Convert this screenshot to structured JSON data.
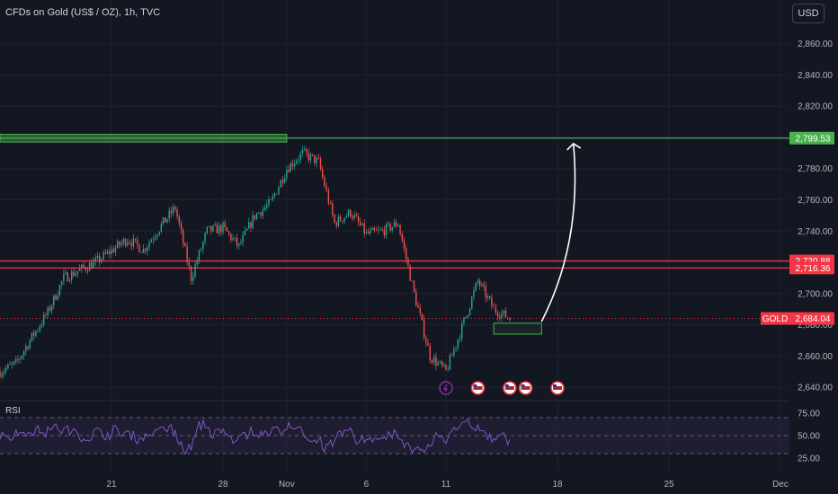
{
  "chart_title": "CFDs on Gold (US$ / OZ), 1h, TVC",
  "currency_button": "USD",
  "rsi_label": "RSI",
  "colors": {
    "background": "#131722",
    "up": "#26a69a",
    "down": "#ef5350",
    "resistance_green": "#4caf50",
    "support_red": "#f23645",
    "rsi_line": "#7e57c2"
  },
  "chart_data": {
    "type": "candlestick",
    "y_axis": {
      "range": [
        2632,
        2888
      ],
      "ticks": [
        "2,640.00",
        "2,660.00",
        "2,680.00",
        "2,700.00",
        "2,720.00",
        "2,740.00",
        "2,760.00",
        "2,780.00",
        "2,800.00",
        "2,820.00",
        "2,840.00",
        "2,860.00"
      ],
      "tick_values": [
        2640,
        2660,
        2680,
        2700,
        2720,
        2740,
        2760,
        2780,
        2800,
        2820,
        2840,
        2860
      ]
    },
    "x_axis": {
      "ticks": [
        "21",
        "28",
        "Nov",
        "6",
        "11",
        "18",
        "25",
        "Dec"
      ],
      "tick_dates": [
        "2024-10-21",
        "2024-10-28",
        "2024-11-01",
        "2024-11-06",
        "2024-11-11",
        "2024-11-18",
        "2024-11-25",
        "2024-12-02"
      ],
      "range": [
        "2024-10-14",
        "2024-12-02"
      ]
    },
    "price_anchors": [
      [
        "2024-10-14",
        2650
      ],
      [
        "2024-10-15",
        2655
      ],
      [
        "2024-10-16",
        2672
      ],
      [
        "2024-10-17",
        2688
      ],
      [
        "2024-10-18",
        2710
      ],
      [
        "2024-10-20",
        2720
      ],
      [
        "2024-10-22",
        2735
      ],
      [
        "2024-10-23",
        2728
      ],
      [
        "2024-10-24",
        2742
      ],
      [
        "2024-10-25",
        2755
      ],
      [
        "2024-10-26",
        2710
      ],
      [
        "2024-10-27",
        2740
      ],
      [
        "2024-10-28",
        2742
      ],
      [
        "2024-10-29",
        2730
      ],
      [
        "2024-10-30",
        2750
      ],
      [
        "2024-10-31",
        2758
      ],
      [
        "2024-11-01",
        2780
      ],
      [
        "2024-11-02",
        2790
      ],
      [
        "2024-11-03",
        2784
      ],
      [
        "2024-11-04",
        2745
      ],
      [
        "2024-11-05",
        2752
      ],
      [
        "2024-11-06",
        2738
      ],
      [
        "2024-11-07",
        2740
      ],
      [
        "2024-11-08",
        2745
      ],
      [
        "2024-11-09",
        2700
      ],
      [
        "2024-11-10",
        2660
      ],
      [
        "2024-11-11",
        2650
      ],
      [
        "2024-11-12",
        2678
      ],
      [
        "2024-11-13",
        2708
      ],
      [
        "2024-11-14",
        2690
      ],
      [
        "2024-11-15",
        2684
      ]
    ],
    "horizontal_lines": [
      {
        "label": "2,799.53",
        "value": 2799.53,
        "color": "#4caf50"
      },
      {
        "label": "2,720.88",
        "value": 2720.88,
        "color": "#f23645"
      },
      {
        "label": "2,716.36",
        "value": 2716.36,
        "color": "#f23645"
      }
    ],
    "last_price": {
      "symbol": "GOLD",
      "value": 2684.04,
      "label": "2,684.04",
      "color": "#f23645"
    },
    "zones": [
      {
        "name": "resistance-zone",
        "from_date": "2024-10-14",
        "to_date": "2024-11-01",
        "y_low": 2797,
        "y_high": 2802,
        "color": "#4caf50"
      },
      {
        "name": "entry-zone",
        "from_date": "2024-11-14",
        "to_date": "2024-11-17",
        "y_low": 2674,
        "y_high": 2681,
        "color": "#4caf50"
      }
    ],
    "arrow": {
      "from_date": "2024-11-17",
      "from_value": 2682,
      "to_date": "2024-11-19",
      "to_value": 2796
    },
    "events": [
      {
        "date": "2024-11-11",
        "icon": "lightning-icon"
      },
      {
        "date": "2024-11-13",
        "icon": "us-flag-icon"
      },
      {
        "date": "2024-11-15",
        "icon": "us-flag-icon"
      },
      {
        "date": "2024-11-16",
        "icon": "us-flag-icon"
      },
      {
        "date": "2024-11-18",
        "icon": "us-flag-icon"
      }
    ],
    "rsi": {
      "range": [
        15,
        85
      ],
      "ticks": [
        "75.00",
        "50.00",
        "25.00"
      ],
      "tick_values": [
        75,
        50,
        25
      ],
      "bands": [
        70,
        50,
        30
      ]
    }
  }
}
